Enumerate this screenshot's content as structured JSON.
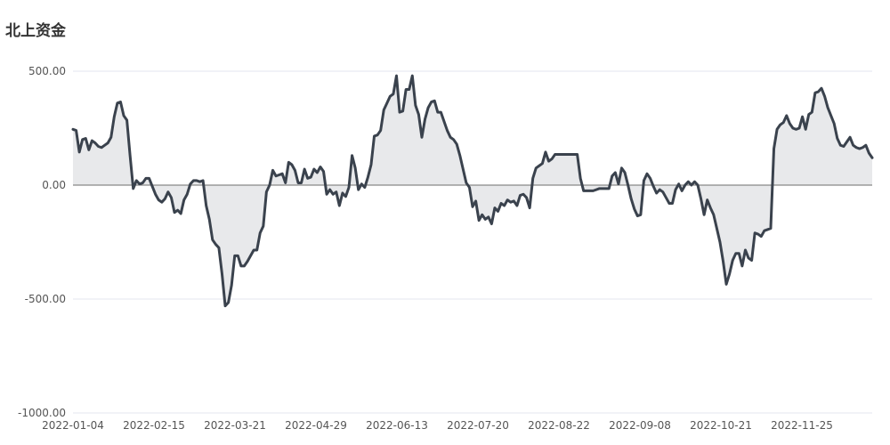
{
  "title": "北上资金",
  "colors": {
    "line": "#3a424d",
    "area": "#e4e5e7",
    "grid": "#e3e6ef",
    "zero": "#6e6e6e",
    "text": "#555555"
  },
  "chart_data": {
    "type": "area",
    "title": "北上资金",
    "xlabel": "",
    "ylabel": "",
    "ylim": [
      -1000,
      500
    ],
    "yticks": [
      500,
      0,
      -500,
      -1000
    ],
    "ytick_labels": [
      "500.00",
      "0.00",
      "-500.00",
      "-1000.00"
    ],
    "xticks": [
      "2022-01-04",
      "2022-02-15",
      "2022-03-21",
      "2022-04-29",
      "2022-06-13",
      "2022-07-20",
      "2022-08-22",
      "2022-09-08",
      "2022-10-21",
      "2022-11-25"
    ],
    "grid": true,
    "legend": "none",
    "series": [
      {
        "values": [
          245,
          240,
          145,
          200,
          205,
          155,
          195,
          185,
          170,
          165,
          175,
          185,
          210,
          300,
          360,
          365,
          305,
          285,
          130,
          -15,
          20,
          5,
          10,
          30,
          30,
          -5,
          -40,
          -65,
          -75,
          -60,
          -30,
          -55,
          -120,
          -110,
          -125,
          -65,
          -40,
          5,
          20,
          20,
          15,
          20,
          -90,
          -150,
          -240,
          -260,
          -275,
          -390,
          -530,
          -515,
          -440,
          -310,
          -310,
          -355,
          -355,
          -335,
          -310,
          -285,
          -285,
          -210,
          -180,
          -30,
          0,
          65,
          40,
          45,
          50,
          10,
          100,
          90,
          65,
          10,
          10,
          70,
          30,
          35,
          70,
          55,
          80,
          60,
          -40,
          -20,
          -40,
          -30,
          -90,
          -35,
          -50,
          -10,
          130,
          75,
          -20,
          5,
          -10,
          35,
          90,
          215,
          220,
          240,
          330,
          360,
          390,
          400,
          480,
          320,
          325,
          420,
          420,
          480,
          350,
          310,
          210,
          290,
          340,
          365,
          370,
          320,
          320,
          280,
          240,
          210,
          200,
          180,
          130,
          70,
          10,
          -10,
          -95,
          -70,
          -155,
          -130,
          -150,
          -140,
          -170,
          -100,
          -115,
          -80,
          -90,
          -65,
          -75,
          -70,
          -90,
          -45,
          -40,
          -55,
          -100,
          30,
          75,
          85,
          95,
          145,
          105,
          115,
          135,
          135,
          135,
          135,
          135,
          135,
          135,
          135,
          30,
          -25,
          -25,
          -25,
          -25,
          -20,
          -15,
          -15,
          -15,
          -15,
          40,
          55,
          5,
          75,
          55,
          0,
          -60,
          -105,
          -135,
          -130,
          20,
          50,
          30,
          -5,
          -35,
          -20,
          -30,
          -55,
          -80,
          -80,
          -20,
          5,
          -25,
          0,
          15,
          0,
          15,
          0,
          -60,
          -130,
          -65,
          -100,
          -130,
          -190,
          -250,
          -335,
          -435,
          -390,
          -330,
          -300,
          -300,
          -355,
          -285,
          -320,
          -330,
          -210,
          -215,
          -225,
          -200,
          -195,
          -190,
          160,
          245,
          265,
          275,
          305,
          270,
          250,
          245,
          250,
          300,
          245,
          310,
          320,
          405,
          410,
          425,
          390,
          340,
          305,
          270,
          205,
          175,
          170,
          190,
          210,
          175,
          165,
          160,
          165,
          175,
          140,
          120
        ]
      }
    ]
  }
}
